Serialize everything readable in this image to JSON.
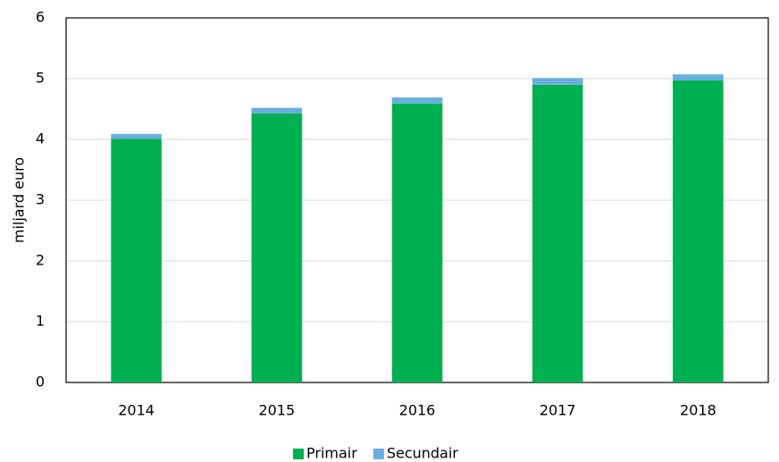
{
  "chart_data": {
    "type": "stacked_bar",
    "y_label": "miljard euro",
    "categories": [
      "2014",
      "2015",
      "2016",
      "2017",
      "2018"
    ],
    "series": [
      {
        "name": "Primair",
        "color": "#00b050",
        "values": [
          4.01,
          4.43,
          4.59,
          4.9,
          4.97
        ]
      },
      {
        "name": "Secundair",
        "color": "#6aaee0",
        "values": [
          0.08,
          0.09,
          0.1,
          0.11,
          0.1
        ]
      }
    ],
    "ylim": [
      0,
      6
    ],
    "yticks": [
      0,
      1,
      2,
      3,
      4,
      5,
      6
    ],
    "grid": true,
    "legend": "bottom"
  }
}
